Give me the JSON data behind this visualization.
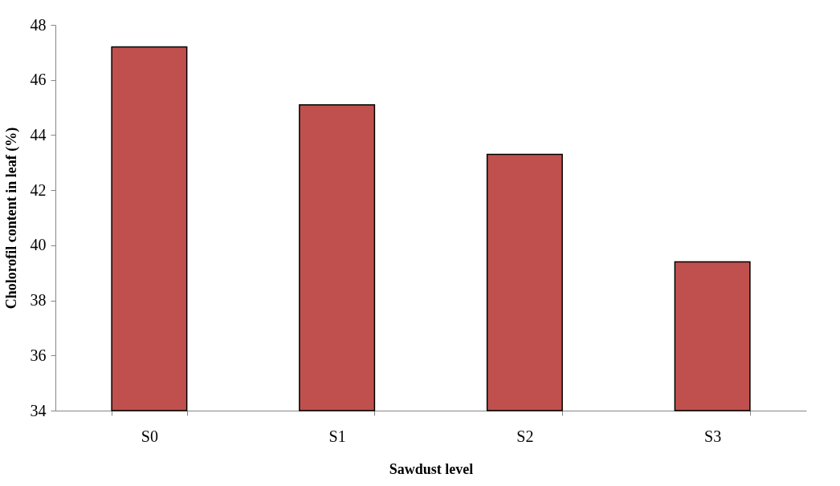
{
  "chart_data": {
    "type": "bar",
    "xlabel": "Sawdust level",
    "ylabel": "Cholorofil content in leaf (%)",
    "categories": [
      "S0",
      "S1",
      "S2",
      "S3"
    ],
    "values": [
      47.2,
      45.1,
      43.3,
      39.4
    ],
    "color": "#c0504d",
    "ylim": [
      34,
      48
    ],
    "yticks": [
      34,
      36,
      38,
      40,
      42,
      44,
      46,
      48
    ],
    "grid": false
  }
}
